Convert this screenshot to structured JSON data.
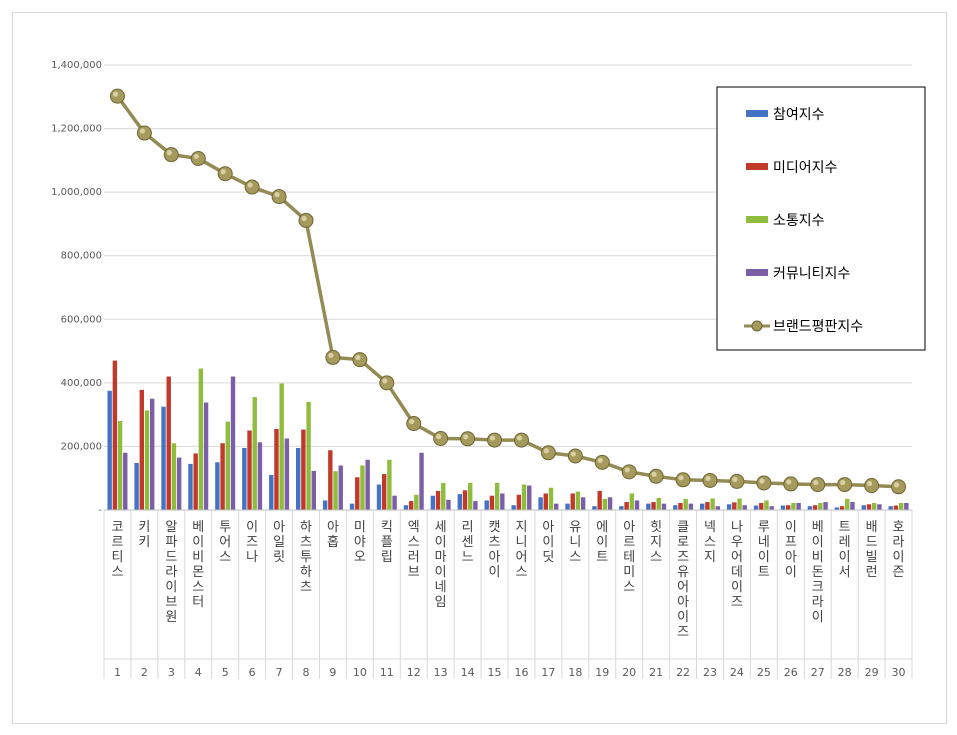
{
  "chart_data": {
    "type": "bar",
    "title": "",
    "xlabel": "",
    "ylabel": "",
    "ylim": [
      0,
      1400000
    ],
    "yticks": [
      0,
      200000,
      400000,
      600000,
      800000,
      1000000,
      1200000,
      1400000
    ],
    "ytick_labels": [
      "-",
      "200,000",
      "400,000",
      "600,000",
      "800,000",
      "1,000,000",
      "1,200,000",
      "1,400,000"
    ],
    "grid": true,
    "legend_position": "top-right",
    "indices": [
      "1",
      "2",
      "3",
      "4",
      "5",
      "6",
      "7",
      "8",
      "9",
      "10",
      "11",
      "12",
      "13",
      "14",
      "15",
      "16",
      "17",
      "18",
      "19",
      "20",
      "21",
      "22",
      "23",
      "24",
      "25",
      "26",
      "27",
      "28",
      "29",
      "30"
    ],
    "categories": [
      "코르티스",
      "키키",
      "알파드라이브원",
      "베이비몬스터",
      "투어스",
      "이즈나",
      "아일릿",
      "하츠투하츠",
      "아홉",
      "미야오",
      "킥플립",
      "엑스러브",
      "세이마이네임",
      "리센느",
      "캣츠아이",
      "지니어스",
      "아이딧",
      "유니스",
      "에이트",
      "아르테미스",
      "힛지스",
      "클로즈유어아이즈",
      "넥스지",
      "나우어데이즈",
      "루네이트",
      "이프아이",
      "베이비돈크라이",
      "트레이서",
      "배드빌런",
      "호라이즌"
    ],
    "series": [
      {
        "name": "참여지수",
        "kind": "bar",
        "color": "#4472c4",
        "values": [
          375000,
          148000,
          325000,
          145000,
          150000,
          195000,
          110000,
          195000,
          30000,
          20000,
          80000,
          15000,
          45000,
          50000,
          30000,
          15000,
          40000,
          20000,
          12000,
          12000,
          20000,
          15000,
          20000,
          18000,
          14000,
          14000,
          12000,
          8000,
          15000,
          12000
        ]
      },
      {
        "name": "미디어지수",
        "kind": "bar",
        "color": "#c0392b",
        "values": [
          470000,
          378000,
          420000,
          178000,
          210000,
          250000,
          255000,
          253000,
          188000,
          103000,
          113000,
          28000,
          60000,
          62000,
          45000,
          48000,
          52000,
          52000,
          60000,
          25000,
          25000,
          22000,
          25000,
          24000,
          22000,
          15000,
          15000,
          12000,
          18000,
          14000
        ]
      },
      {
        "name": "소통지수",
        "kind": "bar",
        "color": "#8fbc3c",
        "values": [
          280000,
          313000,
          210000,
          445000,
          278000,
          355000,
          398000,
          340000,
          122000,
          140000,
          158000,
          48000,
          85000,
          85000,
          85000,
          80000,
          70000,
          58000,
          35000,
          52000,
          38000,
          35000,
          36000,
          36000,
          30000,
          22000,
          22000,
          35000,
          22000,
          22000
        ]
      },
      {
        "name": "커뮤니티지수",
        "kind": "bar",
        "color": "#7b5ea7",
        "values": [
          180000,
          350000,
          165000,
          338000,
          420000,
          213000,
          225000,
          123000,
          140000,
          158000,
          45000,
          180000,
          32000,
          28000,
          52000,
          77000,
          20000,
          40000,
          40000,
          30000,
          20000,
          20000,
          12000,
          15000,
          12000,
          22000,
          25000,
          25000,
          18000,
          22000
        ]
      },
      {
        "name": "브랜드평판지수",
        "kind": "line",
        "color": "#948a54",
        "values": [
          1302000,
          1186000,
          1118000,
          1106000,
          1058000,
          1016000,
          986000,
          911000,
          480000,
          473000,
          400000,
          272000,
          225000,
          224000,
          220000,
          220000,
          180000,
          170000,
          150000,
          120000,
          106000,
          95000,
          93000,
          90000,
          85000,
          82000,
          80000,
          80000,
          77000,
          73000
        ]
      }
    ]
  }
}
